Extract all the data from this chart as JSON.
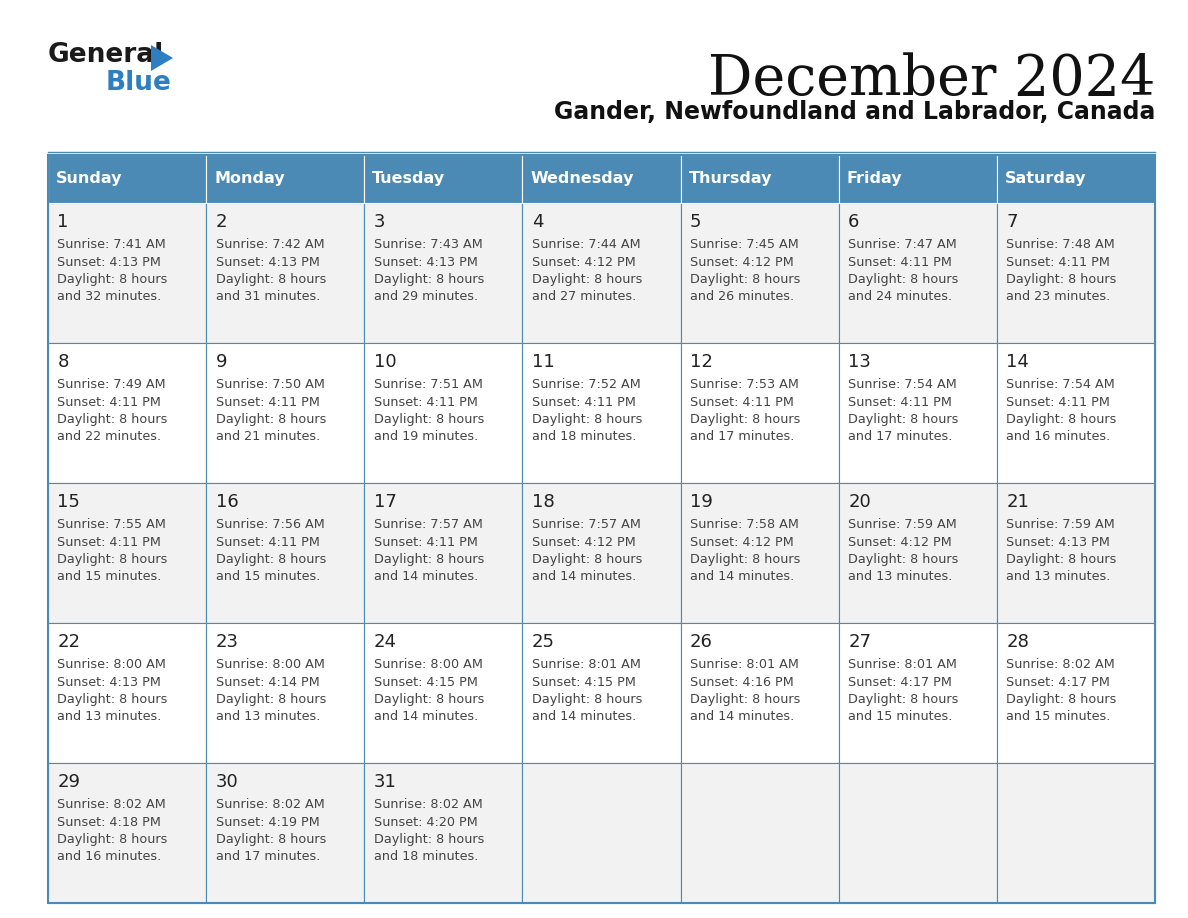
{
  "title": "December 2024",
  "subtitle": "Gander, Newfoundland and Labrador, Canada",
  "days_of_week": [
    "Sunday",
    "Monday",
    "Tuesday",
    "Wednesday",
    "Thursday",
    "Friday",
    "Saturday"
  ],
  "header_bg": "#4a8ab5",
  "header_text": "#ffffff",
  "cell_bg_white": "#ffffff",
  "cell_bg_light": "#f2f2f2",
  "grid_line_color": "#4a8ab5",
  "day_number_color": "#222222",
  "text_color": "#444444",
  "title_color": "#111111",
  "subtitle_color": "#111111",
  "logo_general_color": "#1a1a1a",
  "logo_blue_color": "#2e7fc1",
  "calendar_data": [
    {
      "week": 1,
      "days": [
        {
          "date": 1,
          "sunrise": "7:41 AM",
          "sunset": "4:13 PM",
          "daylight_h": "8 hours",
          "daylight_m": "32 minutes."
        },
        {
          "date": 2,
          "sunrise": "7:42 AM",
          "sunset": "4:13 PM",
          "daylight_h": "8 hours",
          "daylight_m": "31 minutes."
        },
        {
          "date": 3,
          "sunrise": "7:43 AM",
          "sunset": "4:13 PM",
          "daylight_h": "8 hours",
          "daylight_m": "29 minutes."
        },
        {
          "date": 4,
          "sunrise": "7:44 AM",
          "sunset": "4:12 PM",
          "daylight_h": "8 hours",
          "daylight_m": "27 minutes."
        },
        {
          "date": 5,
          "sunrise": "7:45 AM",
          "sunset": "4:12 PM",
          "daylight_h": "8 hours",
          "daylight_m": "26 minutes."
        },
        {
          "date": 6,
          "sunrise": "7:47 AM",
          "sunset": "4:11 PM",
          "daylight_h": "8 hours",
          "daylight_m": "24 minutes."
        },
        {
          "date": 7,
          "sunrise": "7:48 AM",
          "sunset": "4:11 PM",
          "daylight_h": "8 hours",
          "daylight_m": "23 minutes."
        }
      ]
    },
    {
      "week": 2,
      "days": [
        {
          "date": 8,
          "sunrise": "7:49 AM",
          "sunset": "4:11 PM",
          "daylight_h": "8 hours",
          "daylight_m": "22 minutes."
        },
        {
          "date": 9,
          "sunrise": "7:50 AM",
          "sunset": "4:11 PM",
          "daylight_h": "8 hours",
          "daylight_m": "21 minutes."
        },
        {
          "date": 10,
          "sunrise": "7:51 AM",
          "sunset": "4:11 PM",
          "daylight_h": "8 hours",
          "daylight_m": "19 minutes."
        },
        {
          "date": 11,
          "sunrise": "7:52 AM",
          "sunset": "4:11 PM",
          "daylight_h": "8 hours",
          "daylight_m": "18 minutes."
        },
        {
          "date": 12,
          "sunrise": "7:53 AM",
          "sunset": "4:11 PM",
          "daylight_h": "8 hours",
          "daylight_m": "17 minutes."
        },
        {
          "date": 13,
          "sunrise": "7:54 AM",
          "sunset": "4:11 PM",
          "daylight_h": "8 hours",
          "daylight_m": "17 minutes."
        },
        {
          "date": 14,
          "sunrise": "7:54 AM",
          "sunset": "4:11 PM",
          "daylight_h": "8 hours",
          "daylight_m": "16 minutes."
        }
      ]
    },
    {
      "week": 3,
      "days": [
        {
          "date": 15,
          "sunrise": "7:55 AM",
          "sunset": "4:11 PM",
          "daylight_h": "8 hours",
          "daylight_m": "15 minutes."
        },
        {
          "date": 16,
          "sunrise": "7:56 AM",
          "sunset": "4:11 PM",
          "daylight_h": "8 hours",
          "daylight_m": "15 minutes."
        },
        {
          "date": 17,
          "sunrise": "7:57 AM",
          "sunset": "4:11 PM",
          "daylight_h": "8 hours",
          "daylight_m": "14 minutes."
        },
        {
          "date": 18,
          "sunrise": "7:57 AM",
          "sunset": "4:12 PM",
          "daylight_h": "8 hours",
          "daylight_m": "14 minutes."
        },
        {
          "date": 19,
          "sunrise": "7:58 AM",
          "sunset": "4:12 PM",
          "daylight_h": "8 hours",
          "daylight_m": "14 minutes."
        },
        {
          "date": 20,
          "sunrise": "7:59 AM",
          "sunset": "4:12 PM",
          "daylight_h": "8 hours",
          "daylight_m": "13 minutes."
        },
        {
          "date": 21,
          "sunrise": "7:59 AM",
          "sunset": "4:13 PM",
          "daylight_h": "8 hours",
          "daylight_m": "13 minutes."
        }
      ]
    },
    {
      "week": 4,
      "days": [
        {
          "date": 22,
          "sunrise": "8:00 AM",
          "sunset": "4:13 PM",
          "daylight_h": "8 hours",
          "daylight_m": "13 minutes."
        },
        {
          "date": 23,
          "sunrise": "8:00 AM",
          "sunset": "4:14 PM",
          "daylight_h": "8 hours",
          "daylight_m": "13 minutes."
        },
        {
          "date": 24,
          "sunrise": "8:00 AM",
          "sunset": "4:15 PM",
          "daylight_h": "8 hours",
          "daylight_m": "14 minutes."
        },
        {
          "date": 25,
          "sunrise": "8:01 AM",
          "sunset": "4:15 PM",
          "daylight_h": "8 hours",
          "daylight_m": "14 minutes."
        },
        {
          "date": 26,
          "sunrise": "8:01 AM",
          "sunset": "4:16 PM",
          "daylight_h": "8 hours",
          "daylight_m": "14 minutes."
        },
        {
          "date": 27,
          "sunrise": "8:01 AM",
          "sunset": "4:17 PM",
          "daylight_h": "8 hours",
          "daylight_m": "15 minutes."
        },
        {
          "date": 28,
          "sunrise": "8:02 AM",
          "sunset": "4:17 PM",
          "daylight_h": "8 hours",
          "daylight_m": "15 minutes."
        }
      ]
    },
    {
      "week": 5,
      "days": [
        {
          "date": 29,
          "sunrise": "8:02 AM",
          "sunset": "4:18 PM",
          "daylight_h": "8 hours",
          "daylight_m": "16 minutes."
        },
        {
          "date": 30,
          "sunrise": "8:02 AM",
          "sunset": "4:19 PM",
          "daylight_h": "8 hours",
          "daylight_m": "17 minutes."
        },
        {
          "date": 31,
          "sunrise": "8:02 AM",
          "sunset": "4:20 PM",
          "daylight_h": "8 hours",
          "daylight_m": "18 minutes."
        },
        {
          "date": null,
          "sunrise": null,
          "sunset": null,
          "daylight_h": null,
          "daylight_m": null
        },
        {
          "date": null,
          "sunrise": null,
          "sunset": null,
          "daylight_h": null,
          "daylight_m": null
        },
        {
          "date": null,
          "sunrise": null,
          "sunset": null,
          "daylight_h": null,
          "daylight_m": null
        },
        {
          "date": null,
          "sunrise": null,
          "sunset": null,
          "daylight_h": null,
          "daylight_m": null
        }
      ]
    }
  ]
}
